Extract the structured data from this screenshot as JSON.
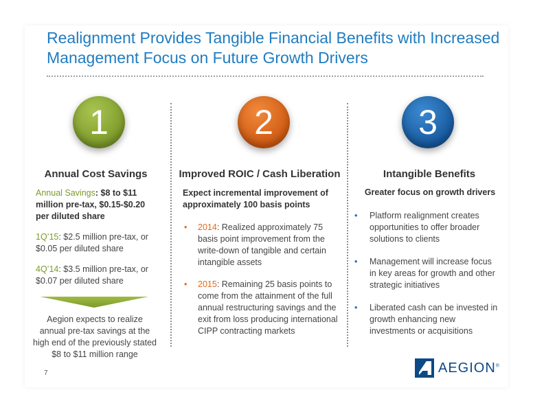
{
  "title": {
    "line1": "Realignment Provides Tangible Financial Benefits with Increased",
    "line2": "Management Focus on Future Growth Drivers"
  },
  "columns": [
    {
      "number": "1",
      "heading": "Annual Cost Savings",
      "items": [
        {
          "label": "Annual Savings",
          "text": ": $8 to $11 million pre-tax, $0.15-$0.20 per diluted share"
        },
        {
          "label": "1Q’15",
          "text": ": $2.5 million pre-tax, or $0.05 per diluted share"
        },
        {
          "label": "4Q’14",
          "text": ": $3.5 million pre-tax, or $0.07 per diluted share"
        }
      ],
      "note": "Aegion expects to realize annual pre-tax savings at the high end of the previously stated  $8 to $11 million range"
    },
    {
      "number": "2",
      "heading": "Improved ROIC / Cash Liberation",
      "intro": "Expect incremental improvement of approximately 100 basis points",
      "bullets": [
        {
          "label": "2014",
          "text": ":  Realized approximately 75 basis point improvement from the write-down of tangible and certain intangible assets"
        },
        {
          "label": "2015",
          "text": ":  Remaining 25 basis points to come from the attainment of the full annual restructuring savings and the exit from loss producing international CIPP contracting markets"
        }
      ]
    },
    {
      "number": "3",
      "heading": "Intangible Benefits",
      "intro": "Greater focus on growth drivers",
      "bullets": [
        "Platform realignment creates opportunities to offer broader solutions to clients",
        "Management will increase focus in key areas for growth and other strategic initiatives",
        "Liberated cash can be invested in growth enhancing new investments or acquisitions"
      ]
    }
  ],
  "page_number": "7",
  "logo": {
    "text": "AEGION",
    "mark": "®",
    "icon": "aegion-logo-icon"
  },
  "colors": {
    "title": "#1f7cc1",
    "green": "#7d9a2a",
    "orange": "#e06b1e",
    "blue": "#1f6fb6"
  }
}
